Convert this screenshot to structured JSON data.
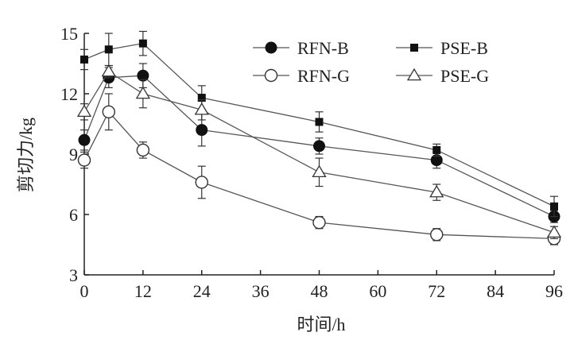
{
  "chart_data": {
    "type": "line",
    "title": "",
    "xlabel": "时间/h",
    "ylabel": "剪切力/kg",
    "x": [
      0,
      5,
      12,
      24,
      48,
      72,
      96
    ],
    "xticks": [
      0,
      12,
      24,
      36,
      48,
      60,
      72,
      84,
      96
    ],
    "yticks": [
      3,
      6,
      9,
      12,
      15
    ],
    "xlim": [
      0,
      96
    ],
    "ylim": [
      3,
      15
    ],
    "grid": false,
    "legend_position": "top-right",
    "series": [
      {
        "name": "RFN-B",
        "marker": "filled-circle",
        "values": [
          9.7,
          12.8,
          12.9,
          10.2,
          9.4,
          8.7,
          5.9
        ],
        "errors": [
          0.5,
          0.5,
          0.6,
          0.8,
          0.4,
          0.4,
          0.3
        ]
      },
      {
        "name": "PSE-B",
        "marker": "filled-square",
        "values": [
          13.7,
          14.2,
          14.5,
          11.8,
          10.6,
          9.2,
          6.4
        ],
        "errors": [
          0.5,
          0.8,
          0.6,
          0.6,
          0.5,
          0.3,
          0.5
        ]
      },
      {
        "name": "RFN-G",
        "marker": "open-circle",
        "values": [
          8.7,
          11.1,
          9.2,
          7.6,
          5.6,
          5.0,
          4.8
        ],
        "errors": [
          0.4,
          0.9,
          0.4,
          0.8,
          0.3,
          0.3,
          0.3
        ]
      },
      {
        "name": "PSE-G",
        "marker": "open-triangle",
        "values": [
          11.1,
          13.1,
          12.0,
          11.2,
          8.1,
          7.1,
          5.1
        ],
        "errors": [
          0.4,
          0.3,
          0.7,
          0.5,
          0.7,
          0.4,
          0.3
        ]
      }
    ],
    "colors": {
      "line": "#555555",
      "marker": "#111111",
      "axis": "#222222"
    }
  }
}
